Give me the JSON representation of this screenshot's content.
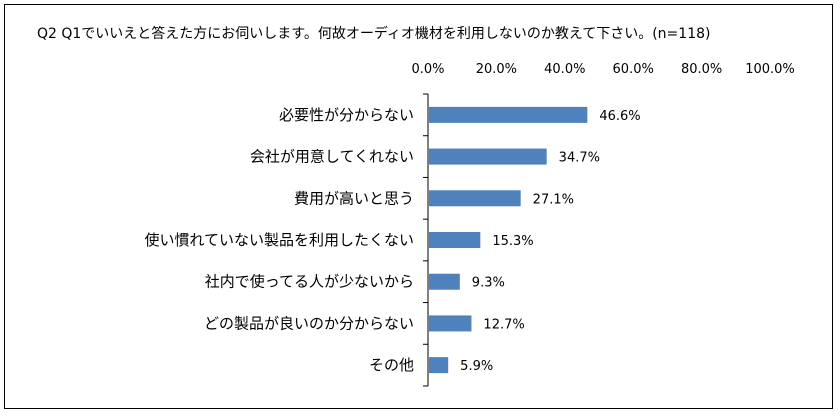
{
  "chart_data": {
    "type": "bar",
    "orientation": "horizontal",
    "title": "Q2 Q1でいいえと答えた方にお伺いします。何故オーディオ機材を利用しないのか教えて下さい。(n=118)",
    "categories": [
      "必要性が分からない",
      "会社が用意してくれない",
      "費用が高いと思う",
      "使い慣れていない製品を利用したくない",
      "社内で使ってる人が少ないから",
      "どの製品が良いのか分からない",
      "その他"
    ],
    "values": [
      46.6,
      34.7,
      27.1,
      15.3,
      9.3,
      12.7,
      5.9
    ],
    "value_labels": [
      "46.6%",
      "34.7%",
      "27.1%",
      "15.3%",
      "9.3%",
      "12.7%",
      "5.9%"
    ],
    "x_ticks": [
      "0.0%",
      "20.0%",
      "40.0%",
      "60.0%",
      "80.0%",
      "100.0%"
    ],
    "xlim": [
      0,
      100
    ],
    "axis_position": "top",
    "grid": false,
    "legend": "none",
    "colors": {
      "bar": "#4f81bd",
      "axis": "#000000",
      "text": "#000000"
    }
  }
}
